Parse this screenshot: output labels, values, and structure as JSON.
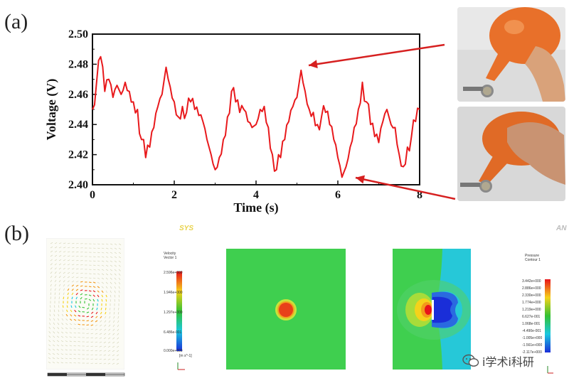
{
  "figure": {
    "panel_a_label": "(a)",
    "panel_b_label": "(b)"
  },
  "chart_data": {
    "type": "line",
    "title": "",
    "xlabel": "Time (s)",
    "ylabel": "Voltage (V)",
    "xlim": [
      0,
      8
    ],
    "ylim": [
      2.4,
      2.5
    ],
    "xticks": [
      "0",
      "2",
      "4",
      "6",
      "8"
    ],
    "yticks": [
      "2.40",
      "2.42",
      "2.44",
      "2.46",
      "2.48",
      "2.50"
    ],
    "line_color": "#e8191c",
    "series": [
      {
        "x": [
          0.0,
          0.1,
          0.2,
          0.3,
          0.4,
          0.5,
          0.6,
          0.7,
          0.8,
          0.9,
          1.0,
          1.1,
          1.2,
          1.3,
          1.4,
          1.5,
          1.6,
          1.7,
          1.8,
          1.9,
          2.0,
          2.1,
          2.2,
          2.3,
          2.4,
          2.5,
          2.6,
          2.7,
          2.8,
          2.9,
          3.0,
          3.1,
          3.2,
          3.3,
          3.4,
          3.5,
          3.6,
          3.7,
          3.8,
          3.9,
          4.0,
          4.1,
          4.2,
          4.3,
          4.4,
          4.5,
          4.6,
          4.7,
          4.8,
          4.9,
          5.0,
          5.1,
          5.2,
          5.3,
          5.4,
          5.5,
          5.6,
          5.7,
          5.8,
          5.9,
          6.0,
          6.1,
          6.2,
          6.3,
          6.4,
          6.5,
          6.6,
          6.7,
          6.8,
          6.9,
          7.0,
          7.1,
          7.2,
          7.3,
          7.4,
          7.5,
          7.6,
          7.7,
          7.8,
          7.9,
          8.0
        ],
        "values": [
          2.45,
          2.468,
          2.485,
          2.462,
          2.47,
          2.458,
          2.466,
          2.46,
          2.468,
          2.462,
          2.455,
          2.45,
          2.43,
          2.418,
          2.425,
          2.438,
          2.452,
          2.46,
          2.478,
          2.465,
          2.455,
          2.445,
          2.452,
          2.448,
          2.455,
          2.45,
          2.446,
          2.442,
          2.43,
          2.42,
          2.41,
          2.418,
          2.43,
          2.445,
          2.462,
          2.455,
          2.448,
          2.45,
          2.442,
          2.438,
          2.44,
          2.45,
          2.452,
          2.438,
          2.42,
          2.41,
          2.418,
          2.43,
          2.442,
          2.452,
          2.458,
          2.476,
          2.462,
          2.45,
          2.448,
          2.44,
          2.445,
          2.448,
          2.44,
          2.43,
          2.418,
          2.405,
          2.412,
          2.425,
          2.438,
          2.45,
          2.468,
          2.455,
          2.44,
          2.432,
          2.428,
          2.442,
          2.45,
          2.44,
          2.438,
          2.42,
          2.412,
          2.425,
          2.432,
          2.442,
          2.45
        ]
      }
    ]
  },
  "photos": {
    "top": "photo-rest",
    "bottom": "photo-pressed"
  },
  "simulation": {
    "velocity_legend": {
      "title_lines": [
        "Velocity",
        "Vector 1"
      ],
      "values": [
        "2.596e+000",
        "1.946e+000",
        "1.297e+000",
        "6.486e-001",
        "0.000e+000"
      ],
      "unit": "[m s^-1]"
    },
    "ansys_logo_1": "SYS",
    "ansys_logo_2": "AN",
    "pressure_legend": {
      "title_lines": [
        "Pressure",
        "Contour 1"
      ],
      "values": [
        "3.442e+000",
        "2.886e+000",
        "2.330e+000",
        "1.774e+000",
        "1.219e+000",
        "6.627e-001",
        "1.068e-001",
        "-4.490e-001",
        "-1.005e+000",
        "-1.561e+000",
        "-2.117e+000"
      ]
    }
  },
  "watermark": {
    "text": "i学术i科研"
  }
}
